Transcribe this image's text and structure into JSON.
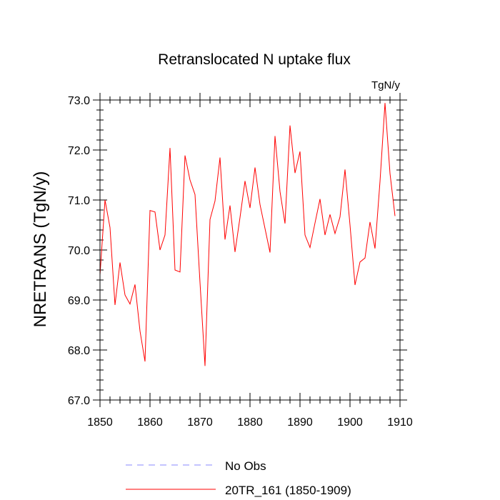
{
  "chart_data": {
    "type": "line",
    "title": "Retranslocated N uptake flux",
    "units": "TgN/y",
    "ylabel": "NRETRANS  (TgN/y)",
    "xlabel": "",
    "xlim": [
      1850,
      1910
    ],
    "ylim": [
      67.0,
      73.0
    ],
    "x_ticks": [
      1850,
      1860,
      1870,
      1880,
      1890,
      1900,
      1910
    ],
    "x_tick_labels": [
      "1850",
      "1860",
      "1870",
      "1880",
      "1890",
      "1900",
      "1910"
    ],
    "y_ticks": [
      67,
      68,
      69,
      70,
      71,
      72,
      73
    ],
    "y_tick_labels": [
      "67.0",
      "68.0",
      "69.0",
      "70.0",
      "71.0",
      "72.0",
      "73.0"
    ],
    "x": [
      1850,
      1851,
      1852,
      1853,
      1854,
      1855,
      1856,
      1857,
      1858,
      1859,
      1860,
      1861,
      1862,
      1863,
      1864,
      1865,
      1866,
      1867,
      1868,
      1869,
      1870,
      1871,
      1872,
      1873,
      1874,
      1875,
      1876,
      1877,
      1878,
      1879,
      1880,
      1881,
      1882,
      1883,
      1884,
      1885,
      1886,
      1887,
      1888,
      1889,
      1890,
      1891,
      1892,
      1893,
      1894,
      1895,
      1896,
      1897,
      1898,
      1899,
      1900,
      1901,
      1902,
      1903,
      1904,
      1905,
      1906,
      1907,
      1908,
      1909
    ],
    "series": [
      {
        "name": "20TR_161 (1850-1909)",
        "color": "#ff0000",
        "values": [
          69.5,
          71.0,
          70.45,
          68.9,
          69.75,
          69.1,
          68.92,
          69.31,
          68.38,
          67.77,
          70.79,
          70.76,
          70.0,
          70.3,
          72.04,
          69.6,
          69.56,
          71.89,
          71.4,
          71.11,
          69.35,
          67.68,
          70.61,
          70.98,
          71.85,
          70.21,
          70.89,
          69.96,
          70.65,
          71.38,
          70.84,
          71.65,
          70.91,
          70.43,
          69.95,
          72.28,
          71.17,
          70.53,
          72.49,
          71.54,
          71.97,
          70.3,
          70.05,
          70.54,
          71.02,
          70.3,
          70.71,
          70.33,
          70.66,
          71.61,
          70.5,
          69.3,
          69.76,
          69.84,
          70.56,
          70.03,
          71.37,
          72.94,
          71.53,
          70.68
        ]
      }
    ],
    "legend": [
      {
        "label": "No Obs",
        "color": "#8888ff",
        "style": "dashed"
      },
      {
        "label": "20TR_161 (1850-1909)",
        "color": "#ff0000",
        "style": "solid"
      }
    ]
  }
}
